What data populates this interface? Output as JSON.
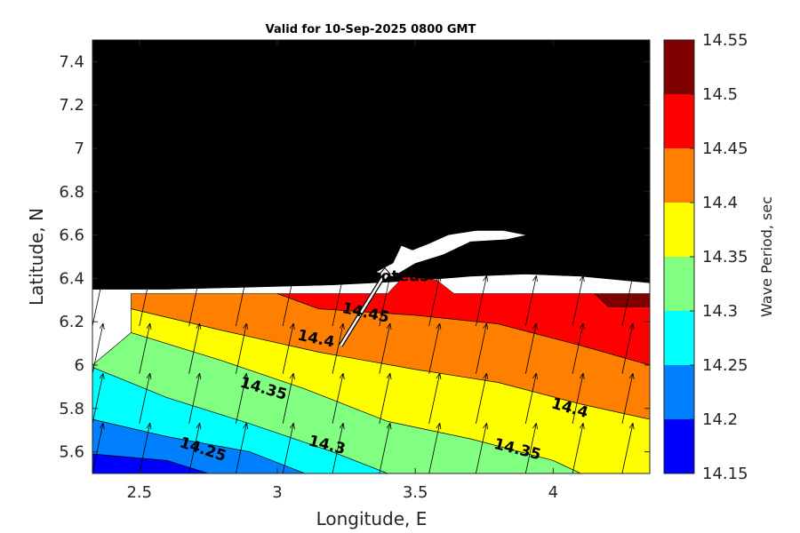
{
  "chart_data": {
    "type": "contour",
    "title": "Valid for 10-Sep-2025 0800 GMT",
    "xlabel": "Longitude, E",
    "ylabel": "Latitude, N",
    "colorbar_label": "Wave Period, sec",
    "xlim": [
      2.33,
      4.35
    ],
    "ylim": [
      5.5,
      7.5
    ],
    "x_ticks": [
      {
        "value": 2.5,
        "label": "2.5"
      },
      {
        "value": 3,
        "label": "3"
      },
      {
        "value": 3.5,
        "label": "3.5"
      },
      {
        "value": 4,
        "label": "4"
      }
    ],
    "y_ticks": [
      {
        "value": 5.6,
        "label": "5.6"
      },
      {
        "value": 5.8,
        "label": "5.8"
      },
      {
        "value": 6,
        "label": "6"
      },
      {
        "value": 6.2,
        "label": "6.2"
      },
      {
        "value": 6.4,
        "label": "6.4"
      },
      {
        "value": 6.6,
        "label": "6.6"
      },
      {
        "value": 6.8,
        "label": "6.8"
      },
      {
        "value": 7,
        "label": "7"
      },
      {
        "value": 7.2,
        "label": "7.2"
      },
      {
        "value": 7.4,
        "label": "7.4"
      }
    ],
    "colorbar": {
      "levels": [
        14.15,
        14.2,
        14.25,
        14.3,
        14.35,
        14.4,
        14.45,
        14.5,
        14.55
      ],
      "tick_labels": [
        "14.15",
        "14.2",
        "14.25",
        "14.3",
        "14.35",
        "14.4",
        "14.45",
        "14.5",
        "14.55"
      ],
      "colors": [
        "#0000ff",
        "#0080ff",
        "#00ffff",
        "#80ff80",
        "#ffff00",
        "#ff8000",
        "#ff0000",
        "#800000"
      ]
    },
    "land_color": "#000000",
    "no_data_color": "#ffffff",
    "contours": [
      {
        "level": 14.2,
        "points": [
          [
            2.33,
            5.59
          ],
          [
            2.6,
            5.56
          ],
          [
            2.75,
            5.5
          ]
        ]
      },
      {
        "level": 14.25,
        "points": [
          [
            2.33,
            5.75
          ],
          [
            2.6,
            5.67
          ],
          [
            2.9,
            5.6
          ],
          [
            3.1,
            5.5
          ]
        ]
      },
      {
        "level": 14.3,
        "points": [
          [
            2.33,
            5.99
          ],
          [
            2.6,
            5.85
          ],
          [
            2.9,
            5.73
          ],
          [
            3.2,
            5.6
          ],
          [
            3.4,
            5.5
          ]
        ]
      },
      {
        "level": 14.35,
        "points": [
          [
            2.47,
            6.15
          ],
          [
            2.8,
            6.02
          ],
          [
            3.1,
            5.89
          ],
          [
            3.4,
            5.74
          ],
          [
            3.7,
            5.66
          ],
          [
            4.0,
            5.56
          ],
          [
            4.1,
            5.5
          ]
        ]
      },
      {
        "level": 14.4,
        "points": [
          [
            2.47,
            6.26
          ],
          [
            2.8,
            6.16
          ],
          [
            3.15,
            6.06
          ],
          [
            3.5,
            5.98
          ],
          [
            3.8,
            5.92
          ],
          [
            4.1,
            5.82
          ],
          [
            4.35,
            5.75
          ]
        ]
      },
      {
        "level": 14.45,
        "points": [
          [
            3.0,
            6.33
          ],
          [
            3.15,
            6.26
          ],
          [
            3.5,
            6.23
          ],
          [
            3.8,
            6.19
          ],
          [
            4.1,
            6.09
          ],
          [
            4.35,
            6.0
          ]
        ]
      },
      {
        "level": 14.5,
        "points": [
          [
            4.15,
            6.33
          ],
          [
            4.2,
            6.27
          ],
          [
            4.35,
            6.27
          ]
        ]
      }
    ],
    "contour_labels": [
      {
        "text": "14.45",
        "lon": 3.32,
        "lat": 6.24,
        "angle": 12
      },
      {
        "text": "14.4",
        "lon": 3.14,
        "lat": 6.12,
        "angle": 12
      },
      {
        "text": "14.35",
        "lon": 2.95,
        "lat": 5.89,
        "angle": 16
      },
      {
        "text": "14.3",
        "lon": 3.18,
        "lat": 5.63,
        "angle": 14
      },
      {
        "text": "14.25",
        "lon": 2.73,
        "lat": 5.61,
        "angle": 18
      },
      {
        "text": "14.4",
        "lon": 4.06,
        "lat": 5.8,
        "angle": 16
      },
      {
        "text": "14.35",
        "lon": 3.87,
        "lat": 5.61,
        "angle": 14
      }
    ],
    "sites": [
      {
        "name": "Proteus",
        "lon": 3.39,
        "lat": 6.42
      }
    ],
    "arrow_grid": {
      "lons": [
        2.33,
        2.5,
        2.68,
        2.85,
        3.02,
        3.2,
        3.37,
        3.55,
        3.72,
        3.9,
        4.07,
        4.25
      ],
      "lats": [
        5.5,
        5.73,
        5.96,
        6.18
      ],
      "direction_deg_from_north": 12
    }
  }
}
